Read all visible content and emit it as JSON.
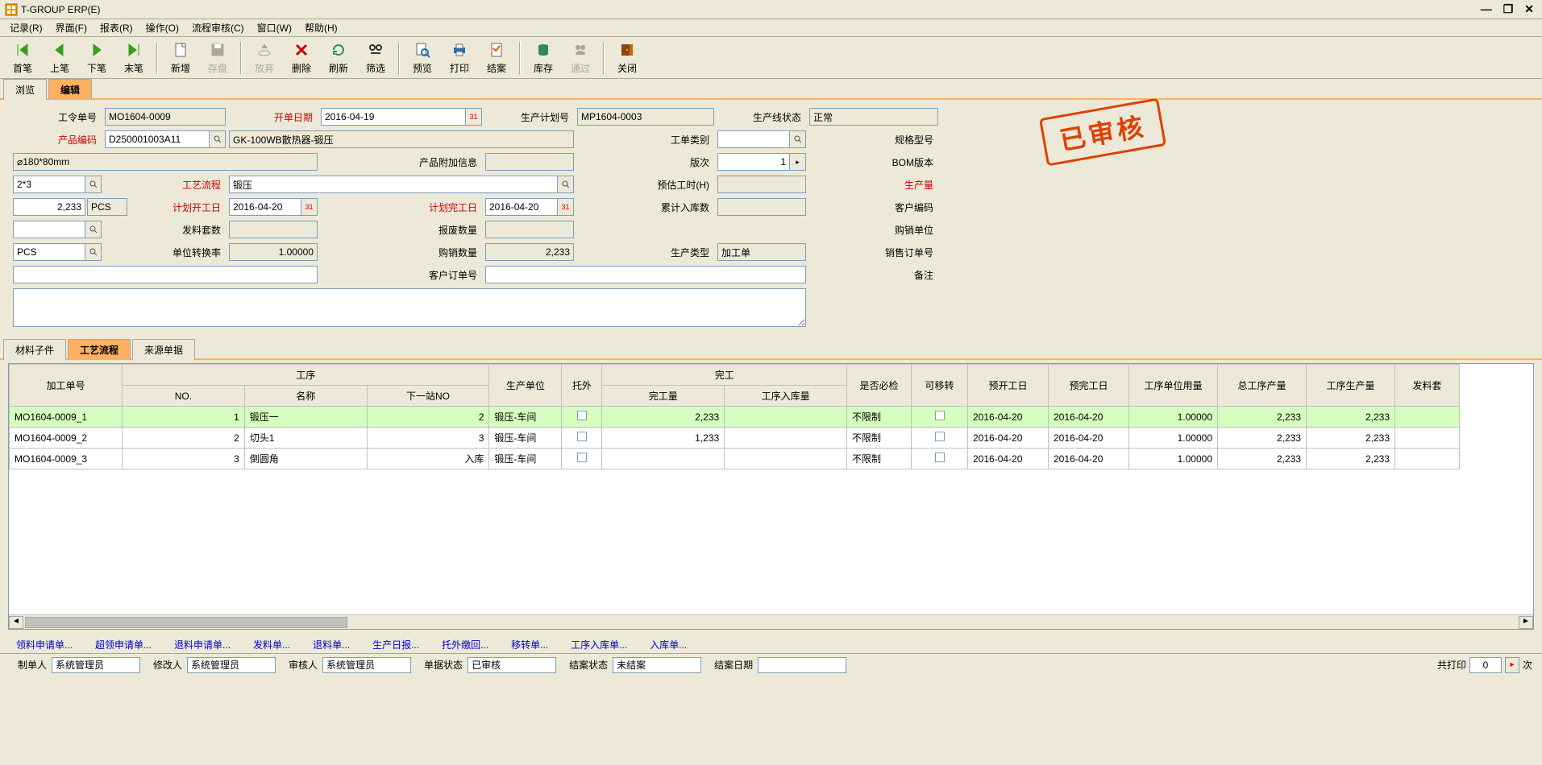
{
  "app": {
    "title": "T-GROUP ERP(E)"
  },
  "menu": [
    "记录(R)",
    "界面(F)",
    "报表(R)",
    "操作(O)",
    "流程审核(C)",
    "窗口(W)",
    "帮助(H)"
  ],
  "toolbar": [
    {
      "id": "first",
      "label": "首笔",
      "color": "#3a9d23"
    },
    {
      "id": "prev",
      "label": "上笔",
      "color": "#3a9d23"
    },
    {
      "id": "next",
      "label": "下笔",
      "color": "#3a9d23"
    },
    {
      "id": "last",
      "label": "末笔",
      "color": "#3a9d23"
    },
    {
      "id": "sep1",
      "sep": true
    },
    {
      "id": "new",
      "label": "新增",
      "color": "#666"
    },
    {
      "id": "save",
      "label": "存盘",
      "color": "#aca899",
      "disabled": true
    },
    {
      "id": "sep2",
      "sep": true
    },
    {
      "id": "cancel",
      "label": "放弃",
      "color": "#aca899",
      "disabled": true
    },
    {
      "id": "delete",
      "label": "删除",
      "color": "#cc0000"
    },
    {
      "id": "refresh",
      "label": "刷新",
      "color": "#2e8b57"
    },
    {
      "id": "filter",
      "label": "筛选",
      "color": "#333"
    },
    {
      "id": "sep3",
      "sep": true
    },
    {
      "id": "preview",
      "label": "预览",
      "color": "#1e6fb8"
    },
    {
      "id": "print",
      "label": "打印",
      "color": "#1e6fb8"
    },
    {
      "id": "close-case",
      "label": "结案",
      "color": "#cc6600"
    },
    {
      "id": "sep4",
      "sep": true
    },
    {
      "id": "stock",
      "label": "库存",
      "color": "#2e8b57"
    },
    {
      "id": "pass",
      "label": "通过",
      "color": "#aca899",
      "disabled": true
    },
    {
      "id": "sep5",
      "sep": true
    },
    {
      "id": "close",
      "label": "关闭",
      "color": "#cc6600"
    }
  ],
  "docTabs": {
    "items": [
      "浏览",
      "编辑"
    ],
    "active": 1
  },
  "form": {
    "labels": {
      "orderNo": "工令单号",
      "openDate": "开单日期",
      "planNo": "生产计划号",
      "lineStatus": "生产线状态",
      "prodCode": "产品编码",
      "prodDesc": "",
      "orderType": "工单类别",
      "spec": "规格型号",
      "extraInfo": "产品附加信息",
      "rev": "版次",
      "bomVer": "BOM版本",
      "process": "工艺流程",
      "estHours": "预估工时(H)",
      "qty": "生产量",
      "qtyUnit": "",
      "planStart": "计划开工日",
      "planEnd": "计划完工日",
      "inQty": "累计入库数",
      "custCode": "客户编码",
      "kitQty": "发料套数",
      "scrapQty": "报废数量",
      "saleUnit": "购销单位",
      "convRate": "单位转换率",
      "saleQty": "购销数量",
      "prodType": "生产类型",
      "soNo": "销售订单号",
      "custOrderNo": "客户订单号",
      "remark": "备注"
    },
    "values": {
      "orderNo": "MO1604-0009",
      "openDate": "2016-04-19",
      "planNo": "MP1604-0003",
      "lineStatus": "正常",
      "prodCode": "D250001003A11",
      "prodDesc": "GK-100WB散热器-锻压",
      "orderType": "",
      "spec": "⌀180*80mm",
      "extraInfo": "",
      "rev": "1",
      "bomVer": "2*3",
      "process": "锻压",
      "estHours": "",
      "qty": "2,233",
      "qtyUnit": "PCS",
      "planStart": "2016-04-20",
      "planEnd": "2016-04-20",
      "inQty": "",
      "custCode": "",
      "kitQty": "",
      "scrapQty": "",
      "saleUnit": "PCS",
      "convRate": "1.00000",
      "saleQty": "2,233",
      "prodType": "加工单",
      "soNo": "",
      "custOrderNo": "",
      "remark": ""
    }
  },
  "stamp": "已审核",
  "detailTabs": {
    "items": [
      "材料子件",
      "工艺流程",
      "来源单据"
    ],
    "active": 1
  },
  "grid": {
    "headerTop": [
      "加工单号",
      "工序",
      "生产单位",
      "托外",
      "完工",
      "是否必检",
      "可移转",
      "预开工日",
      "预完工日",
      "工序单位用量",
      "总工序产量",
      "工序生产量",
      "发料套"
    ],
    "headerSub": {
      "process": [
        "NO.",
        "名称",
        "下一站NO"
      ],
      "finish": [
        "完工量",
        "工序入库量"
      ]
    },
    "rows": [
      {
        "no": "MO1604-0009_1",
        "pno": "1",
        "pname": "锻压一",
        "next": "2",
        "unit": "锻压-车间",
        "out": false,
        "done": "2,233",
        "inq": "",
        "chk": "不限制",
        "mov": false,
        "d1": "2016-04-20",
        "d2": "2016-04-20",
        "uq": "1.00000",
        "tq": "2,233",
        "pq": "2,233"
      },
      {
        "no": "MO1604-0009_2",
        "pno": "2",
        "pname": "切头1",
        "next": "3",
        "unit": "锻压-车间",
        "out": false,
        "done": "1,233",
        "inq": "",
        "chk": "不限制",
        "mov": false,
        "d1": "2016-04-20",
        "d2": "2016-04-20",
        "uq": "1.00000",
        "tq": "2,233",
        "pq": "2,233"
      },
      {
        "no": "MO1604-0009_3",
        "pno": "3",
        "pname": "倒圆角",
        "next": "入库",
        "unit": "锻压-车间",
        "out": false,
        "done": "",
        "inq": "",
        "chk": "不限制",
        "mov": false,
        "d1": "2016-04-20",
        "d2": "2016-04-20",
        "uq": "1.00000",
        "tq": "2,233",
        "pq": "2,233"
      }
    ]
  },
  "bottomLinks": [
    "领料申请单...",
    "超领申请单...",
    "退料申请单...",
    "发料单...",
    "退料单...",
    "生产日报...",
    "托外缴回...",
    "移转单...",
    "工序入库单...",
    "入库单..."
  ],
  "status": {
    "labels": {
      "maker": "制单人",
      "modifier": "修改人",
      "auditor": "审核人",
      "docStatus": "单据状态",
      "caseStatus": "结案状态",
      "caseDate": "结案日期",
      "printCount": "共打印",
      "printSuffix": "次"
    },
    "values": {
      "maker": "系统管理员",
      "modifier": "系统管理员",
      "auditor": "系统管理员",
      "docStatus": "已审核",
      "caseStatus": "未结案",
      "caseDate": "",
      "printCount": "0"
    }
  }
}
